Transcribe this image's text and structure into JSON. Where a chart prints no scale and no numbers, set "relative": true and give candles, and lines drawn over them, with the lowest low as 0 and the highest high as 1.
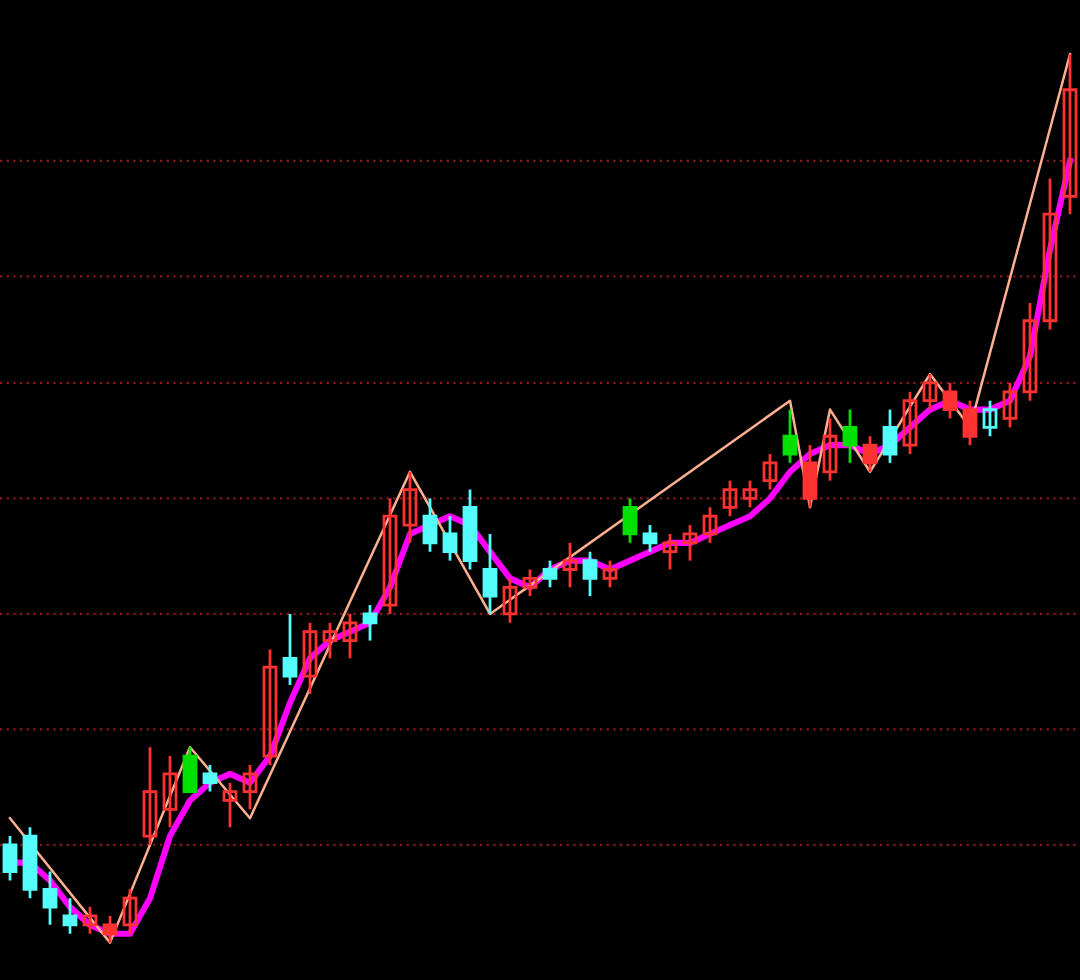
{
  "chart_data": {
    "type": "candlestick",
    "relative": true,
    "tick_labels": false,
    "legend": false,
    "ref_lines": [
      {
        "axis": "y",
        "value": 0.11,
        "color": "#8a1a1a",
        "line_style": "dotted"
      },
      {
        "axis": "y",
        "value": 0.24,
        "color": "#8a1a1a",
        "line_style": "dotted"
      },
      {
        "axis": "y",
        "value": 0.37,
        "color": "#8a1a1a",
        "line_style": "dotted"
      },
      {
        "axis": "y",
        "value": 0.5,
        "color": "#8a1a1a",
        "line_style": "dotted"
      },
      {
        "axis": "y",
        "value": 0.63,
        "color": "#8a1a1a",
        "line_style": "dotted"
      },
      {
        "axis": "y",
        "value": 0.75,
        "color": "#8a1a1a",
        "line_style": "dotted"
      },
      {
        "axis": "y",
        "value": 0.88,
        "color": "#8a1a1a",
        "line_style": "dotted"
      }
    ],
    "categories": [
      null,
      null,
      null,
      null,
      null,
      null,
      null,
      null,
      null,
      null,
      null,
      null,
      null,
      null,
      null,
      null,
      null,
      null,
      null,
      null,
      null,
      null,
      null,
      null,
      null,
      null,
      null,
      null,
      null,
      null,
      null,
      null,
      null,
      null,
      null,
      null,
      null,
      null,
      null,
      null,
      null,
      null,
      null,
      null,
      null,
      null,
      null,
      null,
      null,
      null,
      null,
      null,
      null,
      null
    ],
    "ohlc": [
      [
        0.11,
        0.12,
        0.07,
        0.08
      ],
      [
        0.12,
        0.13,
        0.05,
        0.06
      ],
      [
        0.06,
        0.08,
        0.02,
        0.04
      ],
      [
        0.03,
        0.05,
        0.01,
        0.02
      ],
      [
        0.02,
        0.04,
        0.01,
        0.03
      ],
      [
        0.02,
        0.03,
        0.0,
        0.01
      ],
      [
        0.02,
        0.06,
        0.01,
        0.05
      ],
      [
        0.12,
        0.22,
        0.11,
        0.17
      ],
      [
        0.15,
        0.21,
        0.13,
        0.19
      ],
      [
        0.21,
        0.22,
        0.17,
        0.17
      ],
      [
        0.19,
        0.2,
        0.17,
        0.18
      ],
      [
        0.16,
        0.18,
        0.13,
        0.17
      ],
      [
        0.17,
        0.2,
        0.15,
        0.19
      ],
      [
        0.21,
        0.33,
        0.2,
        0.31
      ],
      [
        0.32,
        0.37,
        0.29,
        0.3
      ],
      [
        0.3,
        0.36,
        0.28,
        0.35
      ],
      [
        0.34,
        0.36,
        0.32,
        0.35
      ],
      [
        0.34,
        0.37,
        0.32,
        0.36
      ],
      [
        0.37,
        0.38,
        0.34,
        0.36
      ],
      [
        0.38,
        0.5,
        0.37,
        0.48
      ],
      [
        0.47,
        0.53,
        0.45,
        0.51
      ],
      [
        0.48,
        0.5,
        0.44,
        0.45
      ],
      [
        0.46,
        0.48,
        0.43,
        0.44
      ],
      [
        0.49,
        0.51,
        0.42,
        0.43
      ],
      [
        0.42,
        0.46,
        0.37,
        0.39
      ],
      [
        0.37,
        0.41,
        0.36,
        0.4
      ],
      [
        0.4,
        0.42,
        0.39,
        0.41
      ],
      [
        0.42,
        0.43,
        0.4,
        0.41
      ],
      [
        0.42,
        0.45,
        0.4,
        0.43
      ],
      [
        0.43,
        0.44,
        0.39,
        0.41
      ],
      [
        0.41,
        0.43,
        0.4,
        0.42
      ],
      [
        0.49,
        0.5,
        0.45,
        0.46
      ],
      [
        0.46,
        0.47,
        0.44,
        0.45
      ],
      [
        0.44,
        0.46,
        0.42,
        0.45
      ],
      [
        0.45,
        0.47,
        0.43,
        0.46
      ],
      [
        0.46,
        0.49,
        0.45,
        0.48
      ],
      [
        0.49,
        0.52,
        0.48,
        0.51
      ],
      [
        0.5,
        0.52,
        0.49,
        0.51
      ],
      [
        0.52,
        0.55,
        0.51,
        0.54
      ],
      [
        0.57,
        0.6,
        0.54,
        0.55
      ],
      [
        0.54,
        0.56,
        0.49,
        0.5
      ],
      [
        0.53,
        0.59,
        0.52,
        0.57
      ],
      [
        0.58,
        0.6,
        0.54,
        0.56
      ],
      [
        0.56,
        0.57,
        0.53,
        0.54
      ],
      [
        0.58,
        0.6,
        0.54,
        0.55
      ],
      [
        0.56,
        0.62,
        0.55,
        0.61
      ],
      [
        0.61,
        0.64,
        0.6,
        0.63
      ],
      [
        0.62,
        0.63,
        0.59,
        0.6
      ],
      [
        0.6,
        0.61,
        0.56,
        0.57
      ],
      [
        0.58,
        0.61,
        0.57,
        0.6
      ],
      [
        0.59,
        0.63,
        0.58,
        0.62
      ],
      [
        0.62,
        0.72,
        0.61,
        0.7
      ],
      [
        0.7,
        0.86,
        0.69,
        0.82
      ],
      [
        0.84,
        1.0,
        0.82,
        0.96
      ]
    ],
    "colors": [
      "#54fcfc",
      "#54fcfc",
      "#54fcfc",
      "#54fcfc",
      "#ff3232",
      "#ff3232",
      "#ff3232",
      "#ff3232",
      "#ff3232",
      "#00e000",
      "#54fcfc",
      "#ff3232",
      "#ff3232",
      "#ff3232",
      "#54fcfc",
      "#ff3232",
      "#ff3232",
      "#ff3232",
      "#54fcfc",
      "#ff3232",
      "#ff3232",
      "#54fcfc",
      "#54fcfc",
      "#54fcfc",
      "#54fcfc",
      "#ff3232",
      "#ff3232",
      "#54fcfc",
      "#ff3232",
      "#54fcfc",
      "#ff3232",
      "#00e000",
      "#54fcfc",
      "#ff3232",
      "#ff3232",
      "#ff3232",
      "#ff3232",
      "#ff3232",
      "#ff3232",
      "#00e000",
      "#ff3232",
      "#ff3232",
      "#00e000",
      "#ff3232",
      "#54fcfc",
      "#ff3232",
      "#ff3232",
      "#ff3232",
      "#ff3232",
      "#54fcfc",
      "#ff3232",
      "#ff3232",
      "#ff3232",
      "#ff3232"
    ],
    "series": [
      {
        "type": "line",
        "color": "#ff00ff",
        "values": [
          0.09,
          0.09,
          0.07,
          0.04,
          0.02,
          0.01,
          0.01,
          0.05,
          0.12,
          0.16,
          0.18,
          0.19,
          0.18,
          0.21,
          0.27,
          0.32,
          0.34,
          0.35,
          0.36,
          0.4,
          0.46,
          0.47,
          0.48,
          0.47,
          0.44,
          0.41,
          0.4,
          0.42,
          0.43,
          0.43,
          0.42,
          0.43,
          0.44,
          0.45,
          0.45,
          0.46,
          0.47,
          0.48,
          0.5,
          0.53,
          0.55,
          0.56,
          0.56,
          0.55,
          0.56,
          0.58,
          0.6,
          0.61,
          0.6,
          0.6,
          0.61,
          0.66,
          0.78,
          0.88
        ]
      },
      {
        "type": "line",
        "color": "#ffb090",
        "values": [
          0.14,
          null,
          null,
          null,
          null,
          0.0,
          null,
          null,
          null,
          0.22,
          null,
          null,
          0.14,
          null,
          null,
          null,
          null,
          null,
          null,
          null,
          0.53,
          null,
          null,
          null,
          0.37,
          null,
          null,
          null,
          null,
          null,
          null,
          null,
          null,
          null,
          null,
          null,
          null,
          null,
          null,
          0.61,
          0.49,
          0.6,
          null,
          0.53,
          null,
          null,
          0.64,
          null,
          0.58,
          null,
          null,
          null,
          null,
          1.0
        ]
      }
    ]
  }
}
